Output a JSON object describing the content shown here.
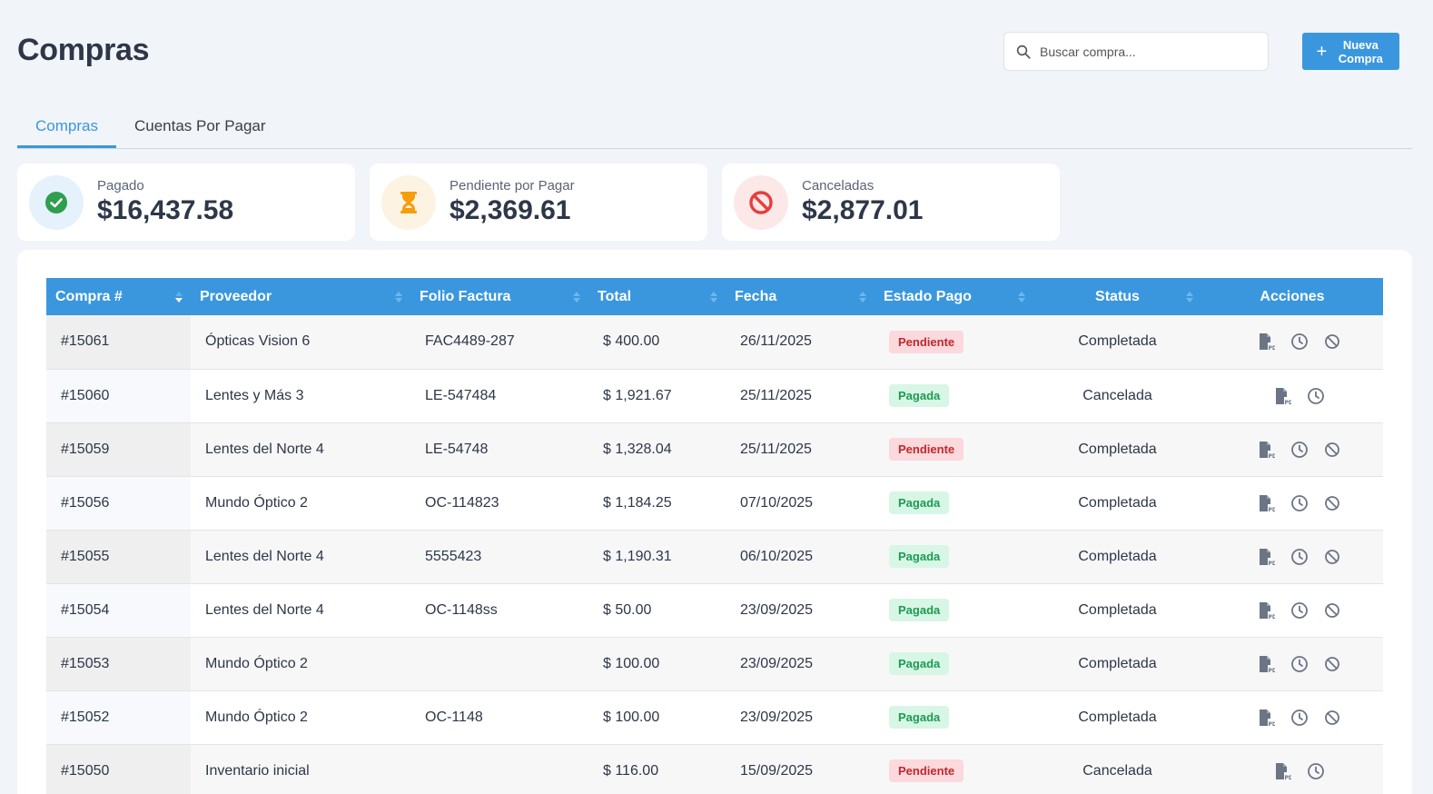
{
  "header": {
    "title": "Compras",
    "search_placeholder": "Buscar compra...",
    "new_button_label": "Nueva\nCompra"
  },
  "tabs": [
    {
      "label": "Compras",
      "active": true
    },
    {
      "label": "Cuentas Por Pagar",
      "active": false
    }
  ],
  "summary": [
    {
      "label": "Pagado",
      "amount": "$16,437.58",
      "icon": "check-circle-icon",
      "color": "#2e9e4f",
      "bg": "#e5f1fb"
    },
    {
      "label": "Pendiente por Pagar",
      "amount": "$2,369.61",
      "icon": "hourglass-icon",
      "color": "#f59e0b",
      "bg": "#fdf3e3"
    },
    {
      "label": "Canceladas",
      "amount": "$2,877.01",
      "icon": "ban-icon",
      "color": "#e53e3e",
      "bg": "#fde8e8"
    }
  ],
  "table": {
    "columns": [
      "Compra #",
      "Proveedor",
      "Folio Factura",
      "Total",
      "Fecha",
      "Estado Pago",
      "Status",
      "Acciones"
    ],
    "rows": [
      {
        "id": "#15061",
        "proveedor": "Ópticas Vision 6",
        "folio": "FAC4489-287",
        "total": "$ 400.00",
        "fecha": "26/11/2025",
        "estado": "Pendiente",
        "status": "Completada"
      },
      {
        "id": "#15060",
        "proveedor": "Lentes y Más 3",
        "folio": "LE-547484",
        "total": "$ 1,921.67",
        "fecha": "25/11/2025",
        "estado": "Pagada",
        "status": "Cancelada"
      },
      {
        "id": "#15059",
        "proveedor": "Lentes del Norte 4",
        "folio": "LE-54748",
        "total": "$ 1,328.04",
        "fecha": "25/11/2025",
        "estado": "Pendiente",
        "status": "Completada"
      },
      {
        "id": "#15056",
        "proveedor": "Mundo Óptico 2",
        "folio": "OC-114823",
        "total": "$ 1,184.25",
        "fecha": "07/10/2025",
        "estado": "Pagada",
        "status": "Completada"
      },
      {
        "id": "#15055",
        "proveedor": "Lentes del Norte 4",
        "folio": "5555423",
        "total": "$ 1,190.31",
        "fecha": "06/10/2025",
        "estado": "Pagada",
        "status": "Completada"
      },
      {
        "id": "#15054",
        "proveedor": "Lentes del Norte 4",
        "folio": "OC-1148ss",
        "total": "$ 50.00",
        "fecha": "23/09/2025",
        "estado": "Pagada",
        "status": "Completada"
      },
      {
        "id": "#15053",
        "proveedor": "Mundo Óptico 2",
        "folio": "",
        "total": "$ 100.00",
        "fecha": "23/09/2025",
        "estado": "Pagada",
        "status": "Completada"
      },
      {
        "id": "#15052",
        "proveedor": "Mundo Óptico 2",
        "folio": "OC-1148",
        "total": "$ 100.00",
        "fecha": "23/09/2025",
        "estado": "Pagada",
        "status": "Completada"
      },
      {
        "id": "#15050",
        "proveedor": "Inventario inicial",
        "folio": "",
        "total": "$ 116.00",
        "fecha": "15/09/2025",
        "estado": "Pendiente",
        "status": "Cancelada"
      }
    ]
  }
}
